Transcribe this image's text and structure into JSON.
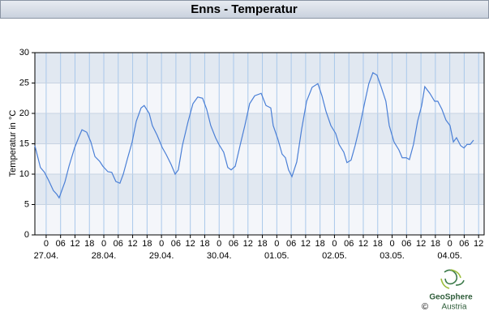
{
  "chart_data": {
    "type": "line",
    "title": "Enns - Temperatur",
    "y_label": "Temperatur in °C",
    "logo_text": [
      "GeoSphere",
      "Austria"
    ],
    "copyright": "©",
    "xlim": [
      -4.7,
      182.3
    ],
    "ylim": [
      0,
      30
    ],
    "yticks": [
      0,
      5,
      10,
      15,
      20,
      25,
      30
    ],
    "xticks": [
      0,
      {
        "value": 6,
        "label": "06"
      },
      {
        "value": 12,
        "label": "12"
      },
      {
        "value": 18,
        "label": "18"
      },
      {
        "value": 24,
        "label": "0"
      },
      {
        "value": 30,
        "label": "06"
      },
      {
        "value": 36,
        "label": "12"
      },
      {
        "value": 42,
        "label": "18"
      },
      {
        "value": 48,
        "label": "0"
      },
      {
        "value": 54,
        "label": "06"
      },
      {
        "value": 60,
        "label": "12"
      },
      {
        "value": 66,
        "label": "18"
      },
      {
        "value": 72,
        "label": "0"
      },
      {
        "value": 78,
        "label": "06"
      },
      {
        "value": 84,
        "label": "12"
      },
      {
        "value": 90,
        "label": "18"
      },
      {
        "value": 96,
        "label": "0"
      },
      {
        "value": 102,
        "label": "06"
      },
      {
        "value": 108,
        "label": "12"
      },
      {
        "value": 114,
        "label": "18"
      },
      {
        "value": 120,
        "label": "0"
      },
      {
        "value": 126,
        "label": "06"
      },
      {
        "value": 132,
        "label": "12"
      },
      {
        "value": 138,
        "label": "18"
      },
      {
        "value": 144,
        "label": "0"
      },
      {
        "value": 150,
        "label": "06"
      },
      {
        "value": 156,
        "label": "12"
      },
      {
        "value": 162,
        "label": "18"
      },
      {
        "value": 168,
        "label": "0"
      },
      {
        "value": 174,
        "label": "06"
      },
      {
        "value": 180,
        "label": "12"
      }
    ],
    "x_date_labels": [
      {
        "value": 0,
        "label": "27.04."
      },
      {
        "value": 24,
        "label": "28.04."
      },
      {
        "value": 48,
        "label": "29.04."
      },
      {
        "value": 72,
        "label": "30.04."
      },
      {
        "value": 96,
        "label": "01.05."
      },
      {
        "value": 120,
        "label": "02.05."
      },
      {
        "value": 144,
        "label": "03.05."
      },
      {
        "value": 168,
        "label": "04.05."
      }
    ],
    "grid": true,
    "band_colors": [
      "#f4f6fa",
      "#e1e8f1"
    ],
    "grid_color": "#a9c8ea",
    "series": [
      {
        "name": "Temperatur",
        "color": "#4a7fd6",
        "x": [
          -4.7,
          -2.4,
          -0.7,
          1.0,
          3.0,
          4.4,
          5.4,
          7.8,
          9.5,
          11.8,
          13.5,
          14.9,
          16.9,
          18.6,
          20.3,
          22.3,
          23.6,
          25.7,
          27.3,
          29.0,
          30.7,
          32.1,
          33.8,
          35.8,
          37.5,
          39.5,
          40.8,
          42.9,
          44.2,
          46.2,
          48.3,
          50.0,
          52.0,
          53.7,
          55.0,
          56.7,
          59.1,
          61.1,
          63.1,
          65.1,
          66.8,
          68.5,
          70.5,
          71.9,
          73.9,
          75.6,
          77.0,
          78.7,
          80.7,
          82.7,
          84.7,
          86.8,
          89.5,
          91.5,
          93.5,
          94.5,
          96.5,
          98.2,
          99.6,
          100.9,
          102.3,
          104.3,
          106.3,
          108.4,
          110.7,
          113.1,
          114.8,
          116.5,
          118.5,
          120.5,
          121.9,
          123.9,
          125.2,
          126.9,
          128.6,
          130.6,
          132.7,
          134.3,
          136.0,
          137.7,
          139.4,
          141.4,
          142.8,
          144.8,
          146.8,
          148.2,
          149.9,
          151.2,
          152.9,
          154.6,
          156.3,
          157.6,
          159.7,
          161.7,
          163.0,
          164.7,
          166.4,
          168.1,
          169.5,
          170.8,
          172.5,
          173.9,
          175.2,
          176.5,
          177.9
        ],
        "values": [
          14.7,
          11.1,
          10.3,
          9.0,
          7.3,
          6.7,
          6.1,
          8.7,
          11.3,
          14.3,
          16.0,
          17.3,
          16.9,
          15.3,
          12.9,
          12.1,
          11.3,
          10.4,
          10.3,
          8.8,
          8.5,
          10.0,
          12.5,
          15.3,
          18.7,
          20.9,
          21.3,
          20.0,
          18.0,
          16.4,
          14.4,
          13.2,
          11.6,
          10.0,
          10.7,
          14.7,
          18.7,
          21.6,
          22.7,
          22.5,
          20.7,
          18.0,
          16.0,
          14.9,
          13.6,
          11.1,
          10.7,
          11.3,
          14.7,
          18.0,
          21.6,
          22.9,
          23.3,
          21.3,
          20.9,
          18.0,
          15.7,
          13.3,
          12.7,
          10.7,
          9.6,
          12.0,
          17.3,
          22.0,
          24.3,
          24.9,
          22.9,
          20.3,
          18.0,
          16.7,
          14.9,
          13.6,
          11.9,
          12.3,
          14.7,
          18.0,
          22.0,
          24.9,
          26.7,
          26.3,
          24.4,
          22.0,
          18.0,
          15.3,
          14.0,
          12.7,
          12.7,
          12.4,
          14.9,
          18.7,
          21.3,
          24.4,
          23.3,
          22.0,
          22.0,
          20.7,
          18.9,
          18.0,
          15.3,
          16.0,
          14.7,
          14.3,
          14.9,
          14.9,
          15.6
        ]
      }
    ]
  }
}
